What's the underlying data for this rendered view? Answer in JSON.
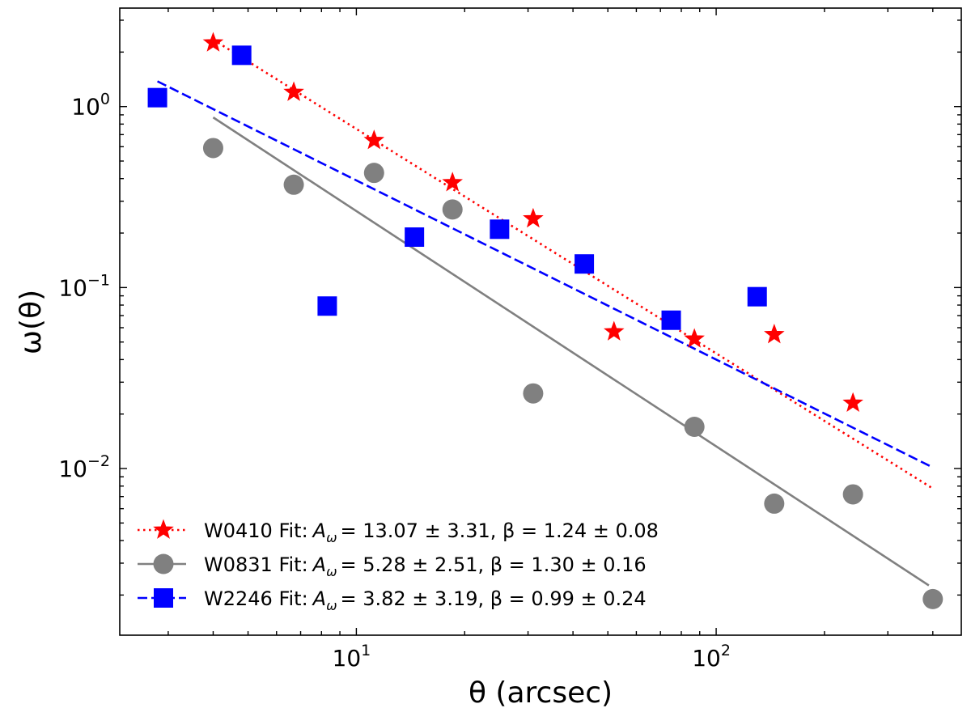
{
  "chart_data": {
    "type": "scatter",
    "xlabel": "θ (arcsec)",
    "ylabel": "ω(θ)",
    "xscale": "log",
    "yscale": "log",
    "xlim": [
      2.2,
      480
    ],
    "ylim": [
      0.0012,
      3.5
    ],
    "x_ticks": [
      {
        "value": 10,
        "base": "10",
        "exp": "1"
      },
      {
        "value": 100,
        "base": "10",
        "exp": "2"
      }
    ],
    "y_ticks": [
      {
        "value": 0.01,
        "base": "10",
        "exp": "−2"
      },
      {
        "value": 0.1,
        "base": "10",
        "exp": "−1"
      },
      {
        "value": 1,
        "base": "10",
        "exp": "0"
      }
    ],
    "legend_position": "lower-left",
    "series": [
      {
        "name": "W0410",
        "marker": "star",
        "color": "#ff0000",
        "line_style": "dotted",
        "x": [
          4.0,
          6.7,
          11.2,
          18.5,
          31.0,
          52.0,
          87.0,
          145.0,
          240.0
        ],
        "y": [
          2.25,
          1.2,
          0.65,
          0.38,
          0.24,
          0.057,
          0.052,
          0.055,
          0.023
        ],
        "fit": {
          "A": 13.07,
          "beta": 1.24,
          "x_range": [
            4.0,
            400.0
          ]
        },
        "legend": {
          "label": "W0410 Fit:",
          "A_text": "= 13.07 ± 3.31, β = 1.24 ± 0.08"
        }
      },
      {
        "name": "W0831",
        "marker": "circle",
        "color": "#808080",
        "line_style": "solid",
        "x": [
          4.0,
          6.7,
          11.2,
          18.5,
          31.0,
          87.0,
          145.0,
          240.0,
          400.0
        ],
        "y": [
          0.59,
          0.37,
          0.43,
          0.27,
          0.026,
          0.017,
          0.0064,
          0.0072,
          0.0019
        ],
        "fit": {
          "A": 5.28,
          "beta": 1.3,
          "x_range": [
            4.0,
            390.0
          ]
        },
        "legend": {
          "label": "W0831 Fit:",
          "A_text": "= 5.28 ± 2.51, β = 1.30 ± 0.16"
        }
      },
      {
        "name": "W2246",
        "marker": "square",
        "color": "#0000ff",
        "line_style": "dashed",
        "x": [
          2.8,
          4.8,
          8.3,
          14.5,
          25.0,
          43.0,
          75.0,
          130.0
        ],
        "y": [
          1.12,
          1.92,
          0.079,
          0.19,
          0.21,
          0.135,
          0.066,
          0.089
        ],
        "fit": {
          "A": 3.82,
          "beta": 0.99,
          "x_range": [
            2.8,
            400.0
          ]
        },
        "legend": {
          "label": "W2246 Fit:",
          "A_text": "= 3.82 ± 3.19, β = 0.99 ± 0.24"
        }
      }
    ]
  }
}
